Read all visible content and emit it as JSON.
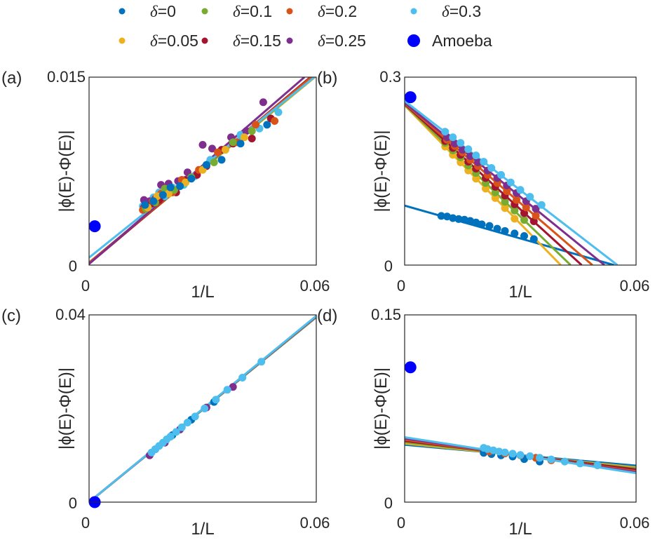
{
  "legend": [
    {
      "label_prefix": "δ",
      "label_value": "=0",
      "color": "#0072BD"
    },
    {
      "label_prefix": "δ",
      "label_value": "=0.1",
      "color": "#77AC30"
    },
    {
      "label_prefix": "δ",
      "label_value": "=0.2",
      "color": "#D95319"
    },
    {
      "label_prefix": "δ",
      "label_value": "=0.3",
      "color": "#4DBEEE"
    },
    {
      "label_prefix": "δ",
      "label_value": "=0.05",
      "color": "#EDB120"
    },
    {
      "label_prefix": "δ",
      "label_value": "=0.15",
      "color": "#A2142F"
    },
    {
      "label_prefix": "δ",
      "label_value": "=0.25",
      "color": "#7E2F8E"
    },
    {
      "label_prefix": "",
      "label_value": "Amoeba",
      "color": "#0000FF"
    }
  ],
  "series_colors": {
    "d0": "#0072BD",
    "d005": "#EDB120",
    "d01": "#77AC30",
    "d015": "#A2142F",
    "d02": "#D95319",
    "d025": "#7E2F8E",
    "d03": "#4DBEEE",
    "amoeba": "#0000FF"
  },
  "chart_data": [
    {
      "panel": "(a)",
      "type": "scatter",
      "xlabel": "1/L",
      "ylabel": "|ϕ(E)-Φ(E)|",
      "xlim": [
        0,
        0.06
      ],
      "ylim": [
        0,
        0.015
      ],
      "xtick_labels": [
        "0",
        "0.06"
      ],
      "ytick_labels": [
        "0",
        "0.015"
      ],
      "amoeba": {
        "x": 0.0015,
        "y": 0.0031
      },
      "fits": [
        {
          "series": "d0",
          "y0": 0.0002,
          "slope": 0.249
        },
        {
          "series": "d005",
          "y0": 0.0002,
          "slope": 0.248
        },
        {
          "series": "d01",
          "y0": 0.0002,
          "slope": 0.249
        },
        {
          "series": "d015",
          "y0": 0.0001,
          "slope": 0.255
        },
        {
          "series": "d02",
          "y0": 0.0002,
          "slope": 0.252
        },
        {
          "series": "d025",
          "y0": 0.0001,
          "slope": 0.262
        },
        {
          "series": "d03",
          "y0": 0.0006,
          "slope": 0.242
        }
      ],
      "points": [
        {
          "series": "d03",
          "x": [
            0.0142,
            0.0155,
            0.017,
            0.0185,
            0.02,
            0.022,
            0.025,
            0.028,
            0.032,
            0.036,
            0.04,
            0.045,
            0.05
          ],
          "y": [
            0.0047,
            0.005,
            0.0054,
            0.0058,
            0.0055,
            0.0062,
            0.0064,
            0.0071,
            0.0084,
            0.0092,
            0.0104,
            0.0109,
            0.0122
          ]
        },
        {
          "series": "d025",
          "x": [
            0.0145,
            0.016,
            0.0175,
            0.019,
            0.021,
            0.0235,
            0.026,
            0.03,
            0.0325,
            0.0375,
            0.0415,
            0.046
          ],
          "y": [
            0.0052,
            0.0051,
            0.0053,
            0.0064,
            0.0065,
            0.0067,
            0.0074,
            0.0096,
            0.0093,
            0.0102,
            0.0107,
            0.013
          ]
        },
        {
          "series": "d015",
          "x": [
            0.0145,
            0.0165,
            0.0185,
            0.0205,
            0.023,
            0.0255,
            0.0285,
            0.031,
            0.035,
            0.038,
            0.043,
            0.048
          ],
          "y": [
            0.0046,
            0.0049,
            0.0052,
            0.006,
            0.0058,
            0.0068,
            0.0072,
            0.0079,
            0.0092,
            0.0097,
            0.0101,
            0.0117
          ]
        },
        {
          "series": "d02",
          "x": [
            0.0142,
            0.0168,
            0.019,
            0.022,
            0.0245,
            0.029,
            0.034,
            0.039,
            0.044,
            0.049
          ],
          "y": [
            0.0044,
            0.0051,
            0.0057,
            0.0058,
            0.0068,
            0.0076,
            0.009,
            0.0098,
            0.0112,
            0.0115
          ]
        },
        {
          "series": "d01",
          "x": [
            0.015,
            0.0175,
            0.02,
            0.0225,
            0.027,
            0.033,
            0.038,
            0.043
          ],
          "y": [
            0.0045,
            0.005,
            0.0061,
            0.006,
            0.007,
            0.0082,
            0.0098,
            0.0107
          ]
        },
        {
          "series": "d005",
          "x": [
            0.0155,
            0.018,
            0.021,
            0.0255,
            0.03,
            0.036,
            0.041
          ],
          "y": [
            0.0046,
            0.0055,
            0.0057,
            0.0066,
            0.0076,
            0.0092,
            0.0102
          ]
        },
        {
          "series": "d0",
          "x": [
            0.0148,
            0.017,
            0.0195,
            0.0215,
            0.024,
            0.027,
            0.031,
            0.035,
            0.04,
            0.047
          ],
          "y": [
            0.0048,
            0.0051,
            0.0056,
            0.0062,
            0.0063,
            0.0069,
            0.008,
            0.0084,
            0.0097,
            0.0112
          ]
        }
      ]
    },
    {
      "panel": "(b)",
      "type": "scatter",
      "xlabel": "1/L",
      "ylabel": "|ϕ(E)-Φ(E)|",
      "xlim": [
        0,
        0.06
      ],
      "ylim": [
        0,
        0.3
      ],
      "xtick_labels": [
        "0",
        "0.06"
      ],
      "ytick_labels": [
        "0",
        "0.3"
      ],
      "amoeba": {
        "x": 0.0015,
        "y": 0.268
      },
      "fits": [
        {
          "series": "d0",
          "y0": 0.095,
          "slope": -1.75,
          "x_end": 0.06
        },
        {
          "series": "d005",
          "y0": 0.255,
          "slope": -6.3
        },
        {
          "series": "d01",
          "y0": 0.256,
          "slope": -5.95
        },
        {
          "series": "d015",
          "y0": 0.257,
          "slope": -5.6
        },
        {
          "series": "d02",
          "y0": 0.258,
          "slope": -5.3
        },
        {
          "series": "d025",
          "y0": 0.259,
          "slope": -5.0
        },
        {
          "series": "d03",
          "y0": 0.262,
          "slope": -4.75
        }
      ],
      "points": [
        {
          "series": "d0",
          "x": [
            0.0095,
            0.011,
            0.0125,
            0.014,
            0.0155,
            0.017,
            0.0185,
            0.02,
            0.022,
            0.024,
            0.026,
            0.0285,
            0.031,
            0.0335
          ],
          "y": [
            0.0785,
            0.0775,
            0.075,
            0.0735,
            0.0725,
            0.0705,
            0.068,
            0.065,
            0.0625,
            0.058,
            0.0545,
            0.0505,
            0.0465,
            0.0415
          ]
        },
        {
          "series": "d005",
          "x": [
            0.0105,
            0.0125,
            0.0145,
            0.0165,
            0.0185,
            0.021,
            0.0235,
            0.026,
            0.0285
          ],
          "y": [
            0.189,
            0.176,
            0.164,
            0.151,
            0.138,
            0.122,
            0.107,
            0.091,
            0.074
          ]
        },
        {
          "series": "d01",
          "x": [
            0.0105,
            0.0125,
            0.0145,
            0.0165,
            0.0185,
            0.021,
            0.0235,
            0.026,
            0.0285,
            0.031
          ],
          "y": [
            0.195,
            0.183,
            0.172,
            0.159,
            0.147,
            0.131,
            0.116,
            0.101,
            0.087,
            0.072
          ]
        },
        {
          "series": "d015",
          "x": [
            0.0105,
            0.0125,
            0.0145,
            0.0165,
            0.0185,
            0.021,
            0.0235,
            0.026,
            0.0285,
            0.031,
            0.0335
          ],
          "y": [
            0.198,
            0.187,
            0.176,
            0.165,
            0.154,
            0.139,
            0.125,
            0.111,
            0.097,
            0.083,
            0.07
          ]
        },
        {
          "series": "d02",
          "x": [
            0.011,
            0.013,
            0.015,
            0.017,
            0.019,
            0.0215,
            0.024,
            0.0265,
            0.029,
            0.0315,
            0.034
          ],
          "y": [
            0.2,
            0.19,
            0.18,
            0.168,
            0.158,
            0.144,
            0.131,
            0.118,
            0.104,
            0.092,
            0.079
          ]
        },
        {
          "series": "d025",
          "x": [
            0.011,
            0.013,
            0.015,
            0.017,
            0.019,
            0.0215,
            0.024,
            0.0265,
            0.029,
            0.0315,
            0.034
          ],
          "y": [
            0.204,
            0.194,
            0.184,
            0.174,
            0.164,
            0.151,
            0.139,
            0.127,
            0.115,
            0.102,
            0.09
          ]
        },
        {
          "series": "d03",
          "x": [
            0.0105,
            0.0125,
            0.0145,
            0.0165,
            0.0185,
            0.0205,
            0.0225,
            0.025,
            0.0275,
            0.03,
            0.0325,
            0.0355
          ],
          "y": [
            0.213,
            0.204,
            0.195,
            0.185,
            0.175,
            0.165,
            0.155,
            0.144,
            0.132,
            0.12,
            0.109,
            0.096
          ]
        }
      ]
    },
    {
      "panel": "(c)",
      "type": "scatter",
      "xlabel": "1/L",
      "ylabel": "|ϕ(E)-Φ(E)|",
      "xlim": [
        0,
        0.06
      ],
      "ylim": [
        0,
        0.04
      ],
      "xtick_labels": [
        "0",
        "0.06"
      ],
      "ytick_labels": [
        "0",
        "0.04"
      ],
      "amoeba": {
        "x": 0.0015,
        "y": 0.0
      },
      "fits": [
        {
          "series": "d0",
          "y0": 0.0,
          "slope": 0.658
        },
        {
          "series": "d005",
          "y0": 0.0,
          "slope": 0.659
        },
        {
          "series": "d01",
          "y0": 0.0,
          "slope": 0.66
        },
        {
          "series": "d015",
          "y0": 0.0,
          "slope": 0.661
        },
        {
          "series": "d02",
          "y0": 0.0,
          "slope": 0.662
        },
        {
          "series": "d025",
          "y0": 0.0,
          "slope": 0.662
        },
        {
          "series": "d03",
          "y0": 0.0,
          "slope": 0.663
        }
      ],
      "points": [
        {
          "series": "d025",
          "x": [
            0.016,
            0.02,
            0.024,
            0.031,
            0.038
          ],
          "y": [
            0.01,
            0.0127,
            0.0155,
            0.0202,
            0.0246
          ]
        },
        {
          "series": "d0",
          "x": [
            0.0175,
            0.022,
            0.027,
            0.033
          ],
          "y": [
            0.0113,
            0.0143,
            0.0176,
            0.0214
          ]
        },
        {
          "series": "d03",
          "x": [
            0.0165,
            0.0175,
            0.0185,
            0.0195,
            0.0205,
            0.0215,
            0.023,
            0.0245,
            0.026,
            0.028,
            0.0305,
            0.0335,
            0.0365,
            0.0405,
            0.0455
          ],
          "y": [
            0.0106,
            0.0113,
            0.012,
            0.0127,
            0.0134,
            0.014,
            0.015,
            0.016,
            0.017,
            0.0183,
            0.02,
            0.0219,
            0.024,
            0.0266,
            0.03
          ]
        }
      ]
    },
    {
      "panel": "(d)",
      "type": "scatter",
      "xlabel": "1/L",
      "ylabel": "|ϕ(E)-Φ(E)|",
      "xlim": [
        0,
        0.06
      ],
      "ylim": [
        0,
        0.15
      ],
      "xtick_labels": [
        "0",
        "0.06"
      ],
      "ytick_labels": [
        "0",
        "0.15"
      ],
      "amoeba": {
        "x": 0.0015,
        "y": 0.108
      },
      "fits": [
        {
          "series": "d0",
          "y0": 0.046,
          "slope": -0.28
        },
        {
          "series": "d005",
          "y0": 0.047,
          "slope": -0.32
        },
        {
          "series": "d01",
          "y0": 0.048,
          "slope": -0.35
        },
        {
          "series": "d015",
          "y0": 0.049,
          "slope": -0.38
        },
        {
          "series": "d02",
          "y0": 0.05,
          "slope": -0.42
        },
        {
          "series": "d025",
          "y0": 0.051,
          "slope": -0.45
        },
        {
          "series": "d03",
          "y0": 0.052,
          "slope": -0.48
        }
      ],
      "points": [
        {
          "series": "d0",
          "x": [
            0.0205,
            0.0225,
            0.025,
            0.028,
            0.031,
            0.035
          ],
          "y": [
            0.0395,
            0.0385,
            0.0375,
            0.0365,
            0.0345,
            0.0325
          ]
        },
        {
          "series": "d02",
          "x": [
            0.022,
            0.026,
            0.03,
            0.034,
            0.038
          ],
          "y": [
            0.0405,
            0.039,
            0.0375,
            0.0355,
            0.0335
          ]
        },
        {
          "series": "d03",
          "x": [
            0.0205,
            0.0215,
            0.023,
            0.0245,
            0.026,
            0.028,
            0.03,
            0.0325,
            0.035,
            0.038,
            0.0415,
            0.0455,
            0.05
          ],
          "y": [
            0.0435,
            0.0425,
            0.0415,
            0.0405,
            0.0398,
            0.0388,
            0.0378,
            0.0368,
            0.0355,
            0.0342,
            0.0325,
            0.031,
            0.0295
          ]
        }
      ]
    }
  ]
}
